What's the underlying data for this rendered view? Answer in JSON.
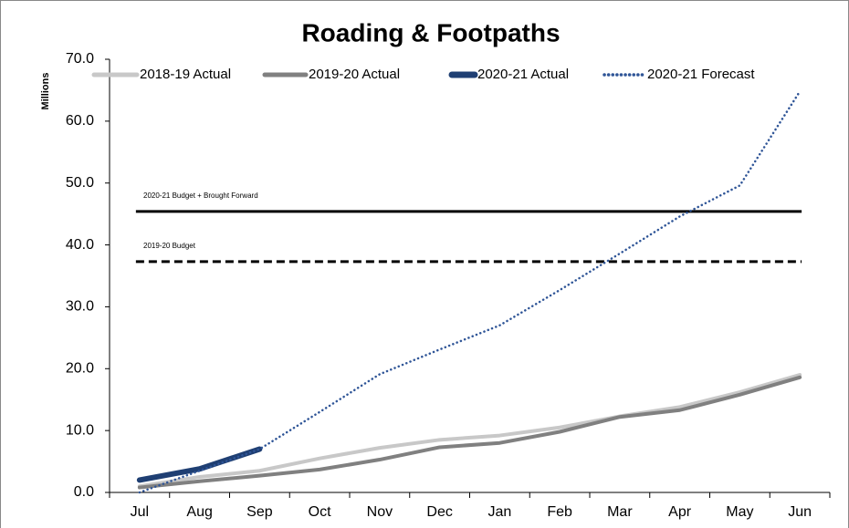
{
  "chart_data": {
    "type": "line",
    "title": "Roading & Footpaths",
    "y_label": "Millions",
    "categories": [
      "Jul",
      "Aug",
      "Sep",
      "Oct",
      "Nov",
      "Dec",
      "Jan",
      "Feb",
      "Mar",
      "Apr",
      "May",
      "Jun"
    ],
    "series": [
      {
        "name": "2018-19 Actual",
        "color": "#c8c8c8",
        "style": "solid",
        "values": [
          1.0,
          2.5,
          3.5,
          5.5,
          7.2,
          8.5,
          9.2,
          10.5,
          12.3,
          13.8,
          16.2,
          19.0
        ]
      },
      {
        "name": "2019-20 Actual",
        "color": "#808080",
        "style": "solid",
        "values": [
          0.8,
          1.8,
          2.7,
          3.7,
          5.3,
          7.3,
          8.0,
          9.8,
          12.2,
          13.3,
          15.8,
          18.6
        ]
      },
      {
        "name": "2020-21 Actual",
        "color": "#1f3f73",
        "style": "solid",
        "values": [
          2.0,
          3.8,
          7.0,
          null,
          null,
          null,
          null,
          null,
          null,
          null,
          null,
          null
        ]
      },
      {
        "name": "2020-21 Forecast",
        "color": "#2f5597",
        "style": "dotted",
        "values": [
          0.0,
          3.5,
          7.0,
          13.0,
          19.1,
          23.1,
          27.0,
          32.7,
          38.6,
          44.6,
          49.6,
          64.8
        ]
      }
    ],
    "reference_lines": [
      {
        "label": "2020-21 Budget + Brought Forward",
        "value": 45.4,
        "color": "#000000",
        "style": "solid"
      },
      {
        "label": "2019-20 Budget",
        "value": 37.3,
        "color": "#000000",
        "style": "dashed"
      }
    ],
    "ylim": [
      0,
      70
    ],
    "yticks": [
      {
        "value": 0,
        "label": "0.0"
      },
      {
        "value": 10,
        "label": "10.0"
      },
      {
        "value": 20,
        "label": "20.0"
      },
      {
        "value": 30,
        "label": "30.0"
      },
      {
        "value": 40,
        "label": "40.0"
      },
      {
        "value": 50,
        "label": "50.0"
      },
      {
        "value": 60,
        "label": "60.0"
      },
      {
        "value": 70,
        "label": "70.0"
      }
    ],
    "legend": "top"
  }
}
